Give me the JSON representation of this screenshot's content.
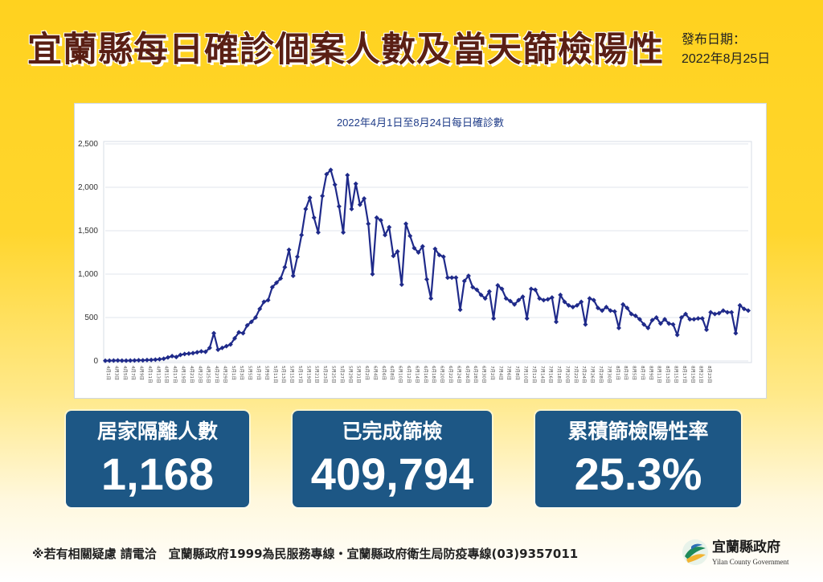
{
  "header": {
    "title": "宜蘭縣每日確診個案人數及當天篩檢陽性率",
    "publish_label": "發布日期：",
    "publish_date": "2022年8月25日"
  },
  "chart_data": {
    "type": "line",
    "title": "2022年4月1日至8月24日每日確診數",
    "ylim": [
      0,
      2500
    ],
    "yticks": [
      "0",
      "500",
      "1,000",
      "1,500",
      "2,000",
      "2,500"
    ],
    "grid": true,
    "color": "#1f2a8a",
    "x_start": "4月1日",
    "x_end": "8月24日",
    "xtick_labels": [
      "4月1日",
      "4月3日",
      "4月5日",
      "4月7日",
      "4月9日",
      "4月11日",
      "4月13日",
      "4月15日",
      "4月17日",
      "4月19日",
      "4月21日",
      "4月23日",
      "4月25日",
      "4月27日",
      "4月29日",
      "5月1日",
      "5月3日",
      "5月5日",
      "5月7日",
      "5月9日",
      "5月11日",
      "5月13日",
      "5月15日",
      "5月17日",
      "5月19日",
      "5月21日",
      "5月23日",
      "5月25日",
      "5月27日",
      "5月29日",
      "5月31日",
      "6月2日",
      "6月4日",
      "6月6日",
      "6月8日",
      "6月10日",
      "6月12日",
      "6月14日",
      "6月16日",
      "6月18日",
      "6月20日",
      "6月22日",
      "6月24日",
      "6月26日",
      "6月28日",
      "6月30日",
      "7月2日",
      "7月4日",
      "7月6日",
      "7月8日",
      "7月10日",
      "7月12日",
      "7月14日",
      "7月16日",
      "7月18日",
      "7月20日",
      "7月22日",
      "7月24日",
      "7月26日",
      "7月28日",
      "7月30日",
      "8月1日",
      "8月3日",
      "8月5日",
      "8月7日",
      "8月9日",
      "8月11日",
      "8月13日",
      "8月15日",
      "8月17日",
      "8月19日",
      "8月21日",
      "8月23日"
    ],
    "values": [
      2,
      3,
      5,
      6,
      4,
      3,
      5,
      6,
      8,
      7,
      10,
      12,
      15,
      20,
      25,
      40,
      55,
      45,
      70,
      80,
      85,
      90,
      100,
      110,
      105,
      150,
      320,
      130,
      150,
      170,
      190,
      260,
      330,
      320,
      410,
      450,
      500,
      600,
      680,
      700,
      850,
      900,
      950,
      1080,
      1280,
      980,
      1200,
      1450,
      1750,
      1880,
      1650,
      1480,
      1900,
      2150,
      2200,
      2030,
      1780,
      1480,
      2140,
      1750,
      2040,
      1800,
      1870,
      1580,
      1000,
      1650,
      1620,
      1450,
      1540,
      1210,
      1260,
      880,
      1580,
      1440,
      1300,
      1250,
      1320,
      940,
      720,
      1290,
      1220,
      1200,
      960,
      960,
      960,
      590,
      920,
      980,
      850,
      820,
      760,
      720,
      800,
      490,
      870,
      830,
      720,
      690,
      650,
      700,
      740,
      490,
      830,
      820,
      720,
      700,
      710,
      730,
      450,
      760,
      680,
      640,
      620,
      640,
      680,
      420,
      720,
      700,
      610,
      580,
      620,
      580,
      570,
      380,
      650,
      610,
      540,
      520,
      480,
      420,
      380,
      470,
      500,
      430,
      480,
      430,
      420,
      300,
      500,
      540,
      480,
      480,
      490,
      490,
      360,
      560,
      540,
      550,
      580,
      560,
      560,
      320,
      640,
      600,
      580
    ]
  },
  "stats": [
    {
      "label": "居家隔離人數",
      "value": "1,168"
    },
    {
      "label": "已完成篩檢",
      "value": "409,794"
    },
    {
      "label": "累積篩檢陽性率",
      "value": "25.3%"
    }
  ],
  "footer": {
    "note": "※若有相關疑慮 請電洽　宜蘭縣政府1999為民服務專線・宜蘭縣政府衛生局防疫專線(03)9357011"
  },
  "logo": {
    "name": "宜蘭縣政府",
    "subtitle": "Yilan County Government"
  }
}
